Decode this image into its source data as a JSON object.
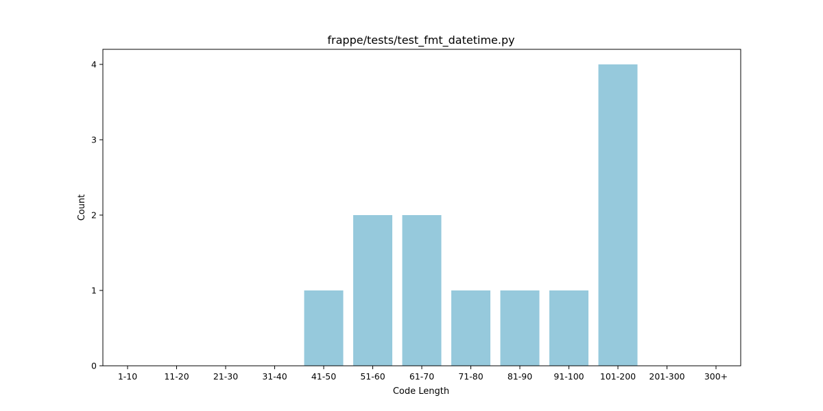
{
  "chart_data": {
    "type": "bar",
    "title": "frappe/tests/test_fmt_datetime.py",
    "xlabel": "Code Length",
    "ylabel": "Count",
    "categories": [
      "1-10",
      "11-20",
      "21-30",
      "31-40",
      "41-50",
      "51-60",
      "61-70",
      "71-80",
      "81-90",
      "91-100",
      "101-200",
      "201-300",
      "300+"
    ],
    "values": [
      0,
      0,
      0,
      0,
      1,
      2,
      2,
      1,
      1,
      1,
      4,
      0,
      0
    ],
    "ylim": [
      0,
      4.2
    ],
    "yticks": [
      0,
      1,
      2,
      3,
      4
    ],
    "grid": false,
    "bar_color": "#96c9dc"
  }
}
